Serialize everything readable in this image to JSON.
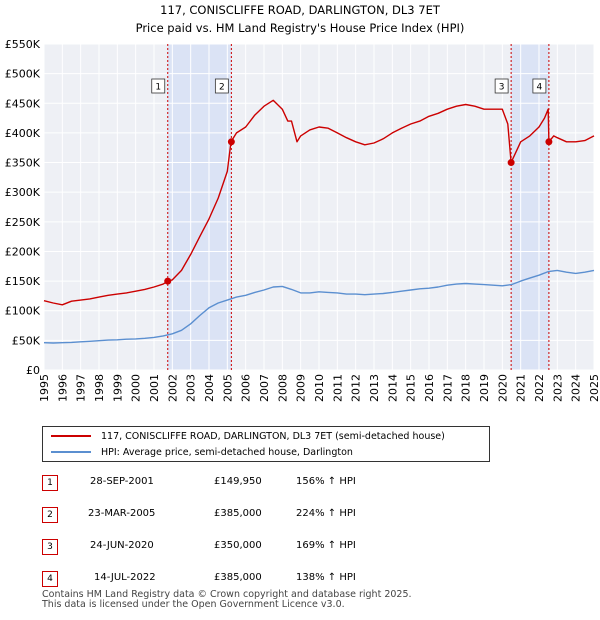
{
  "chart_data": {
    "type": "line",
    "title": "117, CONISCLIFFE ROAD, DARLINGTON, DL3 7ET",
    "subtitle": "Price paid vs. HM Land Registry's House Price Index (HPI)",
    "xlabel": "",
    "ylabel": "",
    "xlim": [
      1995,
      2025
    ],
    "ylim": [
      0,
      550000
    ],
    "y_ticks": [
      0,
      50000,
      100000,
      150000,
      200000,
      250000,
      300000,
      350000,
      400000,
      450000,
      500000,
      550000
    ],
    "y_tick_labels": [
      "£0",
      "£50K",
      "£100K",
      "£150K",
      "£200K",
      "£250K",
      "£300K",
      "£350K",
      "£400K",
      "£450K",
      "£500K",
      "£550K"
    ],
    "x_ticks": [
      1995,
      1996,
      1997,
      1998,
      1999,
      2000,
      2001,
      2002,
      2003,
      2004,
      2005,
      2006,
      2007,
      2008,
      2009,
      2010,
      2011,
      2012,
      2013,
      2014,
      2015,
      2016,
      2017,
      2018,
      2019,
      2020,
      2021,
      2022,
      2023,
      2024,
      2025
    ],
    "grid": true,
    "series": [
      {
        "name": "117, CONISCLIFFE ROAD, DARLINGTON, DL3 7ET (semi-detached house)",
        "color": "#cc0000",
        "x": [
          1995.0,
          1995.5,
          1996.0,
          1996.5,
          1997.0,
          1997.5,
          1998.0,
          1998.5,
          1999.0,
          1999.5,
          2000.0,
          2000.5,
          2001.0,
          2001.5,
          2001.75,
          2002.0,
          2002.5,
          2003.0,
          2003.5,
          2004.0,
          2004.5,
          2005.0,
          2005.2,
          2005.5,
          2006.0,
          2006.5,
          2007.0,
          2007.5,
          2008.0,
          2008.3,
          2008.5,
          2008.8,
          2009.0,
          2009.5,
          2010.0,
          2010.5,
          2011.0,
          2011.5,
          2012.0,
          2012.5,
          2013.0,
          2013.5,
          2014.0,
          2014.5,
          2015.0,
          2015.5,
          2016.0,
          2016.5,
          2017.0,
          2017.5,
          2018.0,
          2018.5,
          2019.0,
          2019.5,
          2020.0,
          2020.3,
          2020.48,
          2020.7,
          2021.0,
          2021.5,
          2022.0,
          2022.3,
          2022.5,
          2022.54,
          2022.8,
          2023.0,
          2023.5,
          2024.0,
          2024.5,
          2025.0
        ],
        "values": [
          117000,
          113000,
          110000,
          116000,
          118000,
          120000,
          123000,
          126000,
          128000,
          130000,
          133000,
          136000,
          140000,
          145000,
          149950,
          152000,
          168000,
          195000,
          225000,
          255000,
          290000,
          335000,
          385000,
          400000,
          410000,
          430000,
          445000,
          455000,
          440000,
          420000,
          420000,
          385000,
          395000,
          405000,
          410000,
          408000,
          400000,
          392000,
          385000,
          380000,
          383000,
          390000,
          400000,
          408000,
          415000,
          420000,
          428000,
          433000,
          440000,
          445000,
          448000,
          445000,
          440000,
          440000,
          440000,
          415000,
          350000,
          365000,
          385000,
          395000,
          410000,
          425000,
          440000,
          385000,
          395000,
          392000,
          385000,
          385000,
          387000,
          395000
        ]
      },
      {
        "name": "HPI: Average price, semi-detached house, Darlington",
        "color": "#5b8fd0",
        "x": [
          1995.0,
          1995.5,
          1996.0,
          1996.5,
          1997.0,
          1997.5,
          1998.0,
          1998.5,
          1999.0,
          1999.5,
          2000.0,
          2000.5,
          2001.0,
          2001.5,
          2002.0,
          2002.5,
          2003.0,
          2003.5,
          2004.0,
          2004.5,
          2005.0,
          2005.5,
          2006.0,
          2006.5,
          2007.0,
          2007.5,
          2008.0,
          2008.5,
          2009.0,
          2009.5,
          2010.0,
          2010.5,
          2011.0,
          2011.5,
          2012.0,
          2012.5,
          2013.0,
          2013.5,
          2014.0,
          2014.5,
          2015.0,
          2015.5,
          2016.0,
          2016.5,
          2017.0,
          2017.5,
          2018.0,
          2018.5,
          2019.0,
          2019.5,
          2020.0,
          2020.5,
          2021.0,
          2021.5,
          2022.0,
          2022.5,
          2023.0,
          2023.5,
          2024.0,
          2024.5,
          2025.0
        ],
        "values": [
          46000,
          45500,
          46000,
          46500,
          47500,
          48500,
          49500,
          50500,
          51000,
          52000,
          52500,
          53500,
          55000,
          57500,
          61000,
          67000,
          78000,
          92000,
          105000,
          113000,
          118000,
          123000,
          126000,
          131000,
          135000,
          140000,
          141000,
          136000,
          130000,
          130000,
          132000,
          131000,
          130000,
          128000,
          128000,
          127000,
          128000,
          129000,
          131000,
          133000,
          135000,
          137000,
          138000,
          140000,
          143000,
          145000,
          146000,
          145000,
          144000,
          143000,
          142000,
          144000,
          150000,
          155000,
          160000,
          166000,
          168000,
          165000,
          163000,
          165000,
          168000
        ]
      }
    ],
    "transactions": [
      {
        "label": "1",
        "x": 2001.75,
        "value": 149950,
        "date": "28-SEP-2001",
        "price": "£149,950",
        "hpi": "156% ↑ HPI"
      },
      {
        "label": "2",
        "x": 2005.22,
        "value": 385000,
        "date": "23-MAR-2005",
        "price": "£385,000",
        "hpi": "224% ↑ HPI"
      },
      {
        "label": "3",
        "x": 2020.48,
        "value": 350000,
        "date": "24-JUN-2020",
        "price": "£350,000",
        "hpi": "169% ↑ HPI"
      },
      {
        "label": "4",
        "x": 2022.54,
        "value": 385000,
        "date": "14-JUL-2022",
        "price": "£385,000",
        "hpi": "138% ↑ HPI"
      }
    ],
    "shaded_ranges": [
      [
        2001.75,
        2005.22
      ],
      [
        2020.48,
        2022.54
      ]
    ],
    "legend_position": "bottom"
  },
  "footer": {
    "line1": "Contains HM Land Registry data © Crown copyright and database right 2025.",
    "line2": "This data is licensed under the Open Government Licence v3.0."
  }
}
